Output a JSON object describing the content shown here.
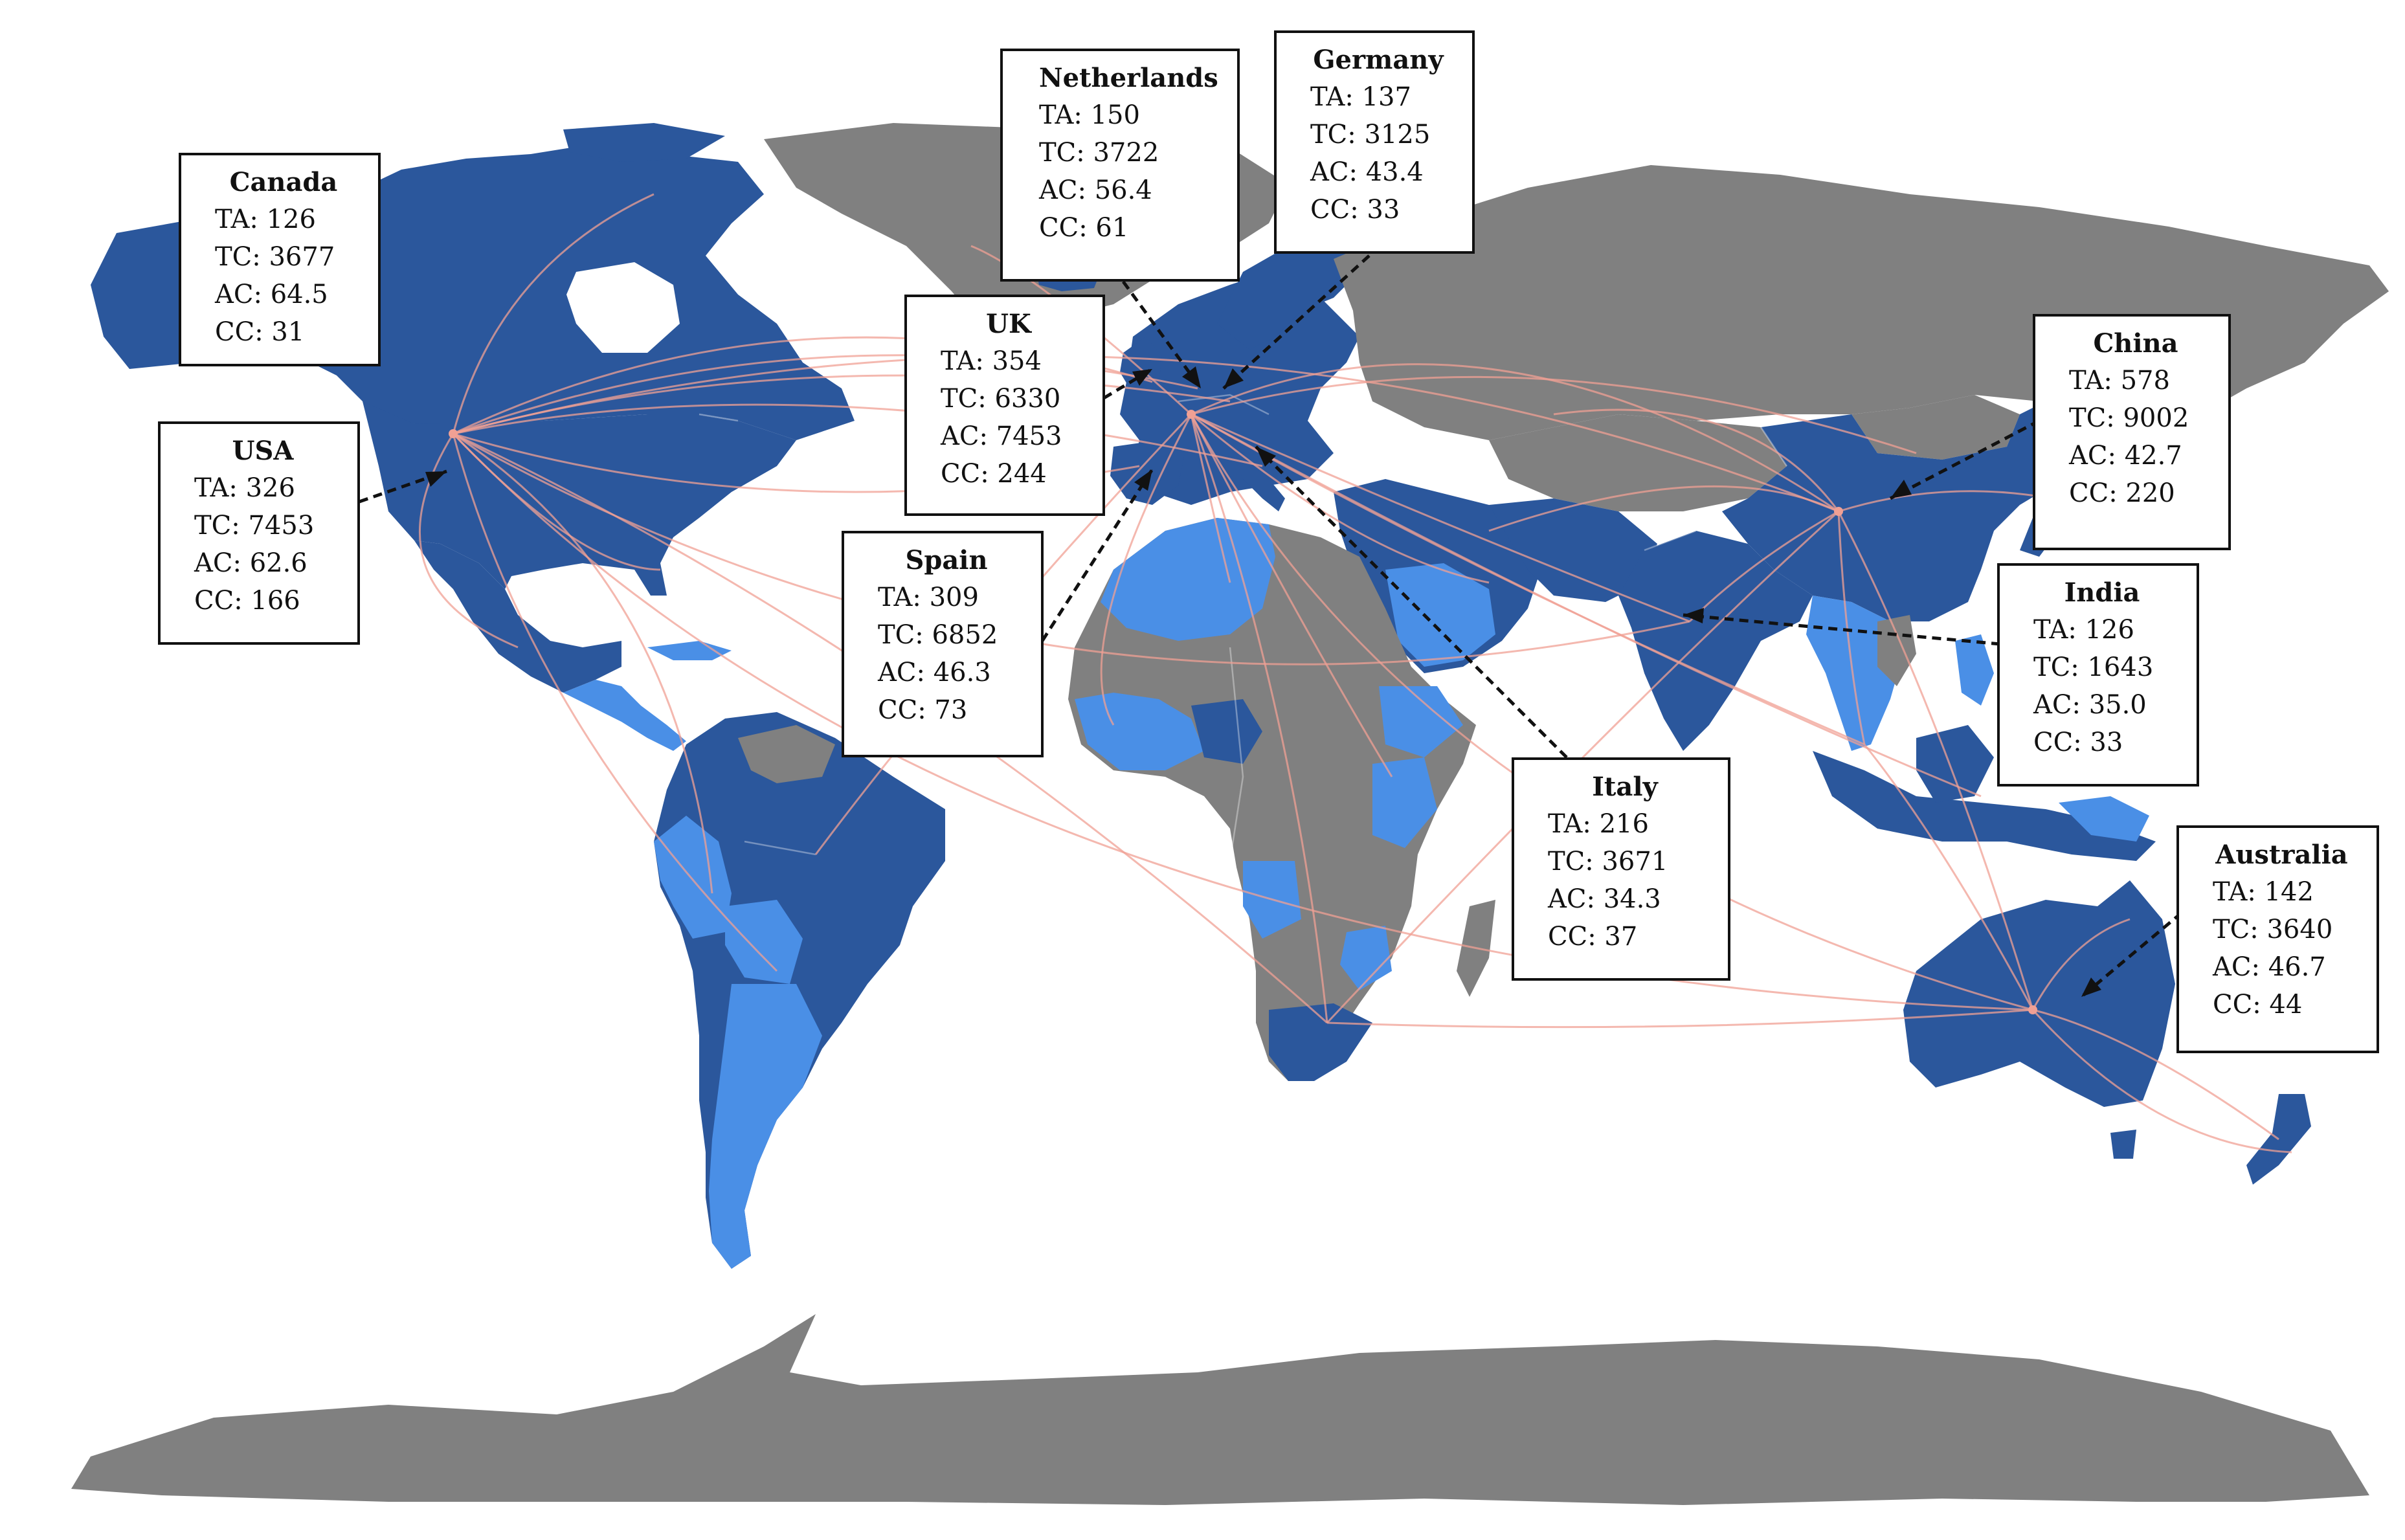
{
  "map": {
    "annotations": [
      {
        "id": "netherlands",
        "country": "Netherlands",
        "TA": "150",
        "TC": "3722",
        "AC": "56.4",
        "CC": "61"
      },
      {
        "id": "germany",
        "country": "Germany",
        "TA": "137",
        "TC": "3125",
        "AC": "43.4",
        "CC": "33"
      },
      {
        "id": "canada",
        "country": "Canada",
        "TA": "126",
        "TC": "3677",
        "AC": "64.5",
        "CC": "31"
      },
      {
        "id": "uk",
        "country": "UK",
        "TA": "354",
        "TC": "6330",
        "AC": "7453",
        "CC": "244"
      },
      {
        "id": "china",
        "country": "China",
        "TA": "578",
        "TC": "9002",
        "AC": "42.7",
        "CC": "220"
      },
      {
        "id": "usa",
        "country": "USA",
        "TA": "326",
        "TC": "7453",
        "AC": "62.6",
        "CC": "166"
      },
      {
        "id": "spain",
        "country": "Spain",
        "TA": "309",
        "TC": "6852",
        "AC": "46.3",
        "CC": "73"
      },
      {
        "id": "india",
        "country": "India",
        "TA": "126",
        "TC": "1643",
        "AC": "35.0",
        "CC": "33"
      },
      {
        "id": "italy",
        "country": "Italy",
        "TA": "216",
        "TC": "3671",
        "AC": "34.3",
        "CC": "37"
      },
      {
        "id": "australia",
        "country": "Australia",
        "TA": "142",
        "TC": "3640",
        "AC": "46.7",
        "CC": "44"
      }
    ],
    "colors": {
      "dark_blue": "#2b579c",
      "mid_blue": "#3c6fc4",
      "light_blue": "#4a8fe6",
      "no_data_gray": "#808080",
      "link_line": "#f0a094",
      "pointer": "#111111"
    }
  }
}
